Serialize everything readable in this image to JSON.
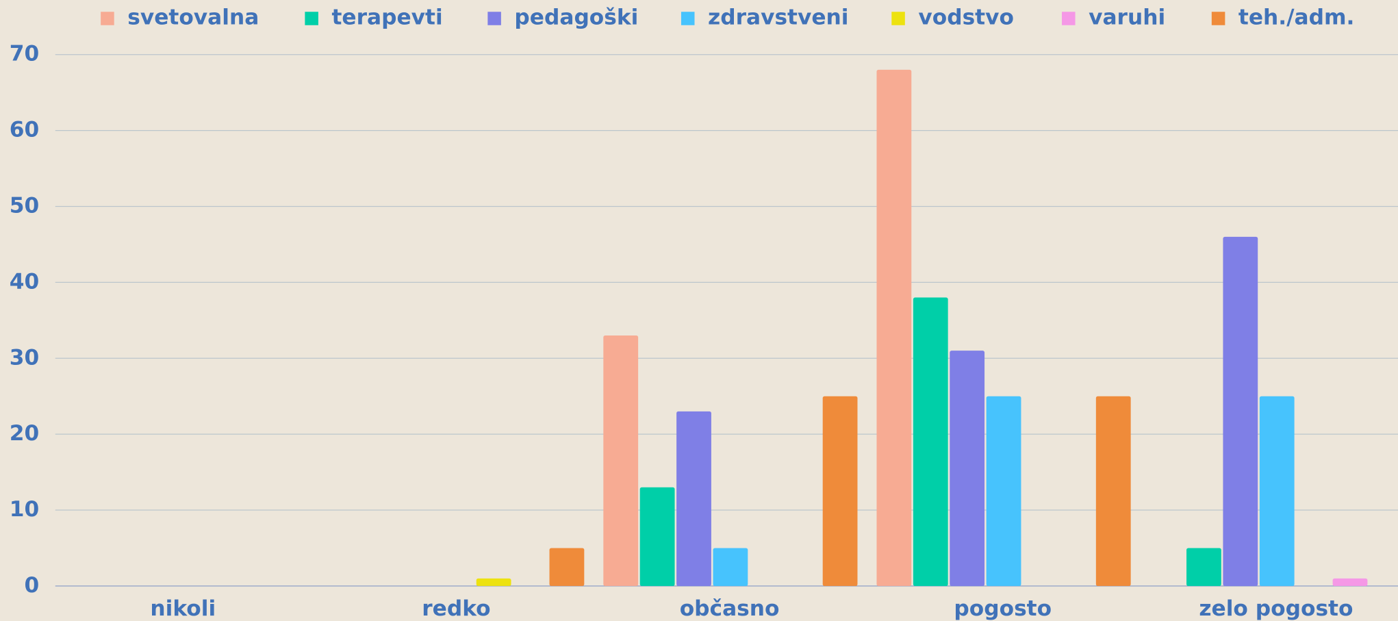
{
  "chart_data": {
    "type": "bar",
    "categories": [
      "nikoli",
      "redko",
      "občasno",
      "pogosto",
      "zelo pogosto"
    ],
    "series": [
      {
        "name": "svetovalna",
        "color": "#f7ab93",
        "values": [
          0,
          0,
          33,
          68,
          0
        ]
      },
      {
        "name": "terapevti",
        "color": "#00cfa8",
        "values": [
          0,
          0,
          13,
          38,
          5
        ]
      },
      {
        "name": "pedagoški",
        "color": "#7f7fe6",
        "values": [
          0,
          0,
          23,
          31,
          46
        ]
      },
      {
        "name": "zdravstveni",
        "color": "#47c3fd",
        "values": [
          0,
          0,
          5,
          25,
          25
        ]
      },
      {
        "name": "vodstvo",
        "color": "#ede20f",
        "values": [
          0,
          1,
          0,
          0,
          0
        ]
      },
      {
        "name": "varuhi",
        "color": "#f598e6",
        "values": [
          0,
          0,
          0,
          0,
          1
        ]
      },
      {
        "name": "teh./adm.",
        "color": "#ef8b3a",
        "values": [
          0,
          5,
          25,
          25,
          0
        ]
      }
    ],
    "ylim": [
      0,
      70
    ],
    "yticks": [
      0,
      10,
      20,
      30,
      40,
      50,
      60,
      70
    ],
    "grid": true,
    "legend": "top"
  }
}
